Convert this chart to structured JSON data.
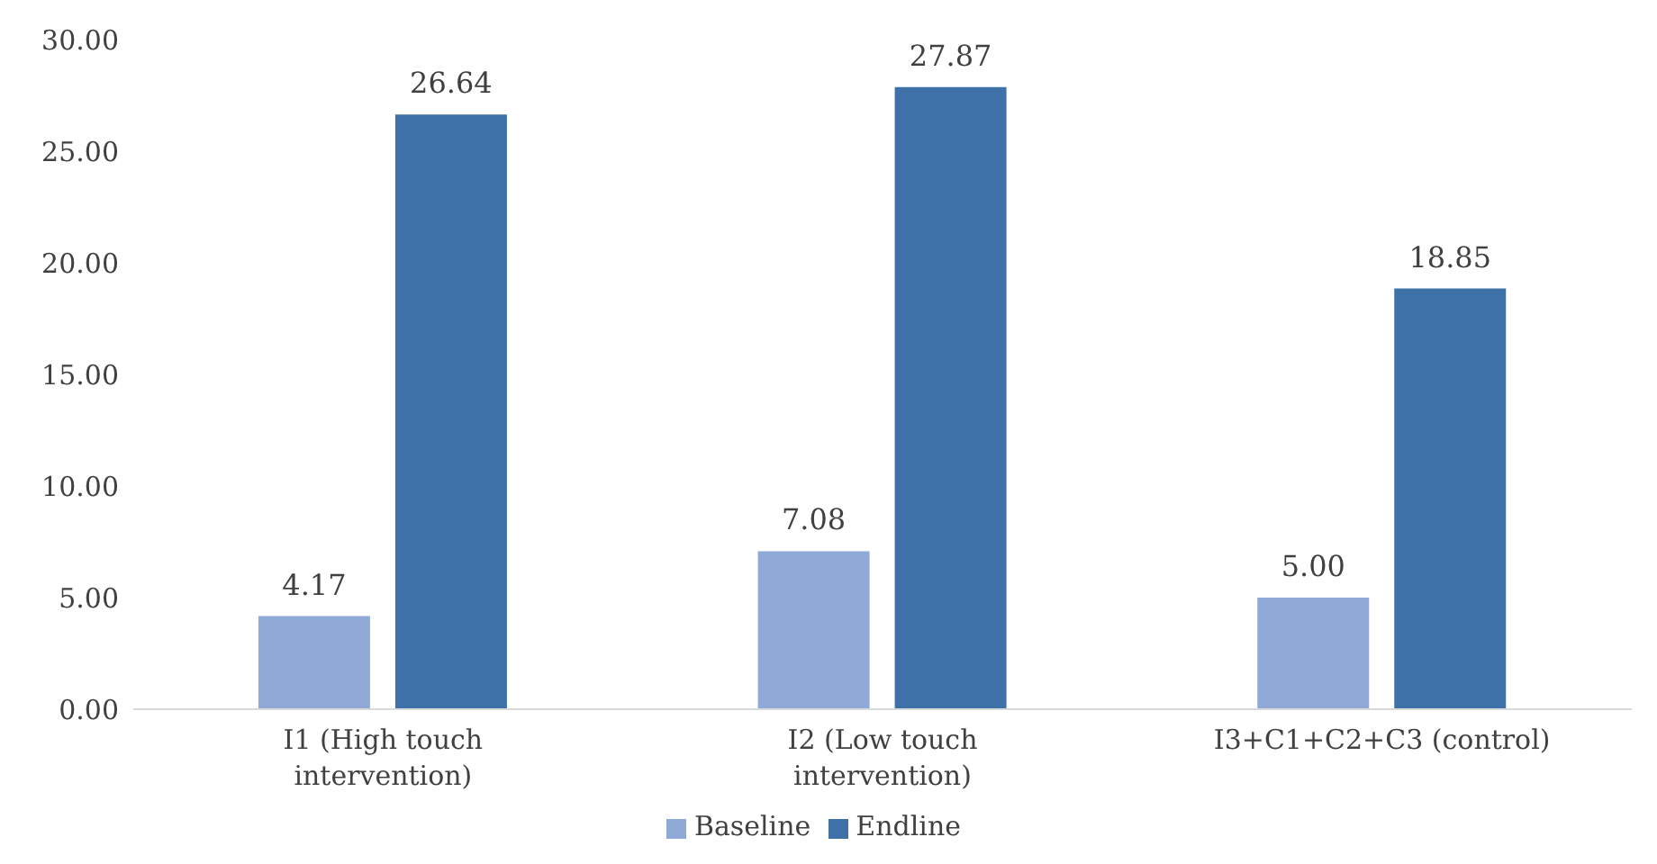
{
  "chart_data": {
    "type": "bar",
    "categories": [
      "I1 (High touch intervention)",
      "I2 (Low touch intervention)",
      "I3+C1+C2+C3 (control)"
    ],
    "series": [
      {
        "name": "Baseline",
        "color": "#8faad6",
        "values": [
          4.17,
          7.08,
          5.0
        ],
        "value_labels": [
          "4.17",
          "7.08",
          "5.00"
        ]
      },
      {
        "name": "Endline",
        "color": "#3e71a8",
        "values": [
          26.64,
          27.87,
          18.85
        ],
        "value_labels": [
          "26.64",
          "27.87",
          "18.85"
        ]
      }
    ],
    "ylim": [
      0,
      30
    ],
    "yticks": [
      {
        "value": 0,
        "label": "0.00"
      },
      {
        "value": 5,
        "label": "5.00"
      },
      {
        "value": 10,
        "label": "10.00"
      },
      {
        "value": 15,
        "label": "15.00"
      },
      {
        "value": 20,
        "label": "20.00"
      },
      {
        "value": 25,
        "label": "25.00"
      },
      {
        "value": 30,
        "label": "30.00"
      }
    ],
    "grid": false,
    "legend": "bottom"
  }
}
